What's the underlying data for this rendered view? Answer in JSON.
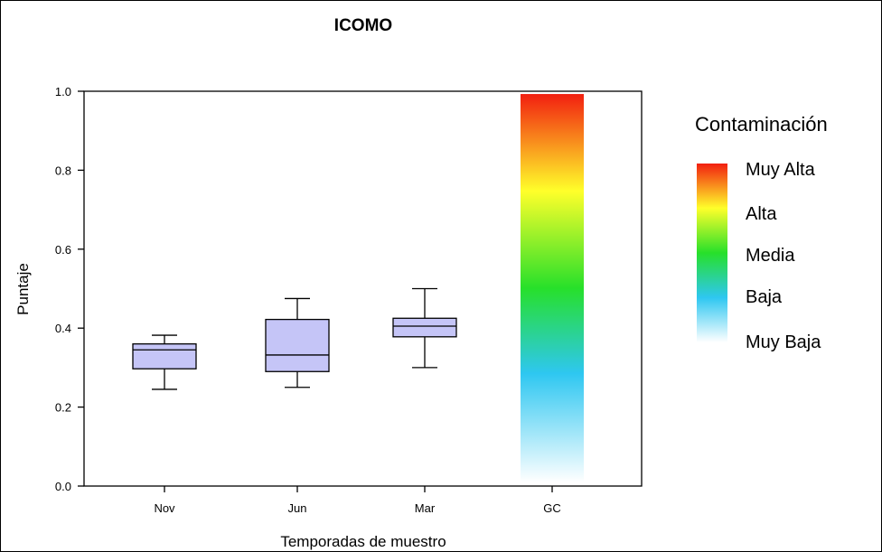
{
  "chart_data": {
    "type": "box",
    "title": "ICOMO",
    "xlabel": "Temporadas de muestro",
    "ylabel": "Puntaje",
    "ylim": [
      0,
      1
    ],
    "yticks": [
      "0.0",
      "0.2",
      "0.4",
      "0.6",
      "0.8",
      "1.0"
    ],
    "ytick_values": [
      0,
      0.2,
      0.4,
      0.6,
      0.8,
      1.0
    ],
    "categories": [
      "Nov",
      "Jun",
      "Mar",
      "GC"
    ],
    "box_color": "#c5c5f7",
    "boxes": [
      {
        "category": "Nov",
        "min": 0.245,
        "q1": 0.297,
        "median": 0.345,
        "q3": 0.36,
        "max": 0.382
      },
      {
        "category": "Jun",
        "min": 0.25,
        "q1": 0.29,
        "median": 0.332,
        "q3": 0.422,
        "max": 0.475
      },
      {
        "category": "Mar",
        "min": 0.3,
        "q1": 0.378,
        "median": 0.405,
        "q3": 0.425,
        "max": 0.5
      }
    ],
    "gradient_bar": {
      "category": "GC",
      "range": [
        0.01,
        0.993
      ],
      "colors": [
        "#ffffff",
        "#2ec7f1",
        "#27e02a",
        "#ffff2a",
        "#f21f10"
      ]
    },
    "legend": {
      "title": "Contaminación",
      "placement": "right",
      "entries": [
        "Muy Alta",
        "Alta",
        "Media",
        "Baja",
        "Muy Baja"
      ],
      "colors": [
        "#f21f10",
        "#ffff2a",
        "#27e02a",
        "#2ec7f1",
        "#ffffff"
      ]
    },
    "grid": false
  }
}
